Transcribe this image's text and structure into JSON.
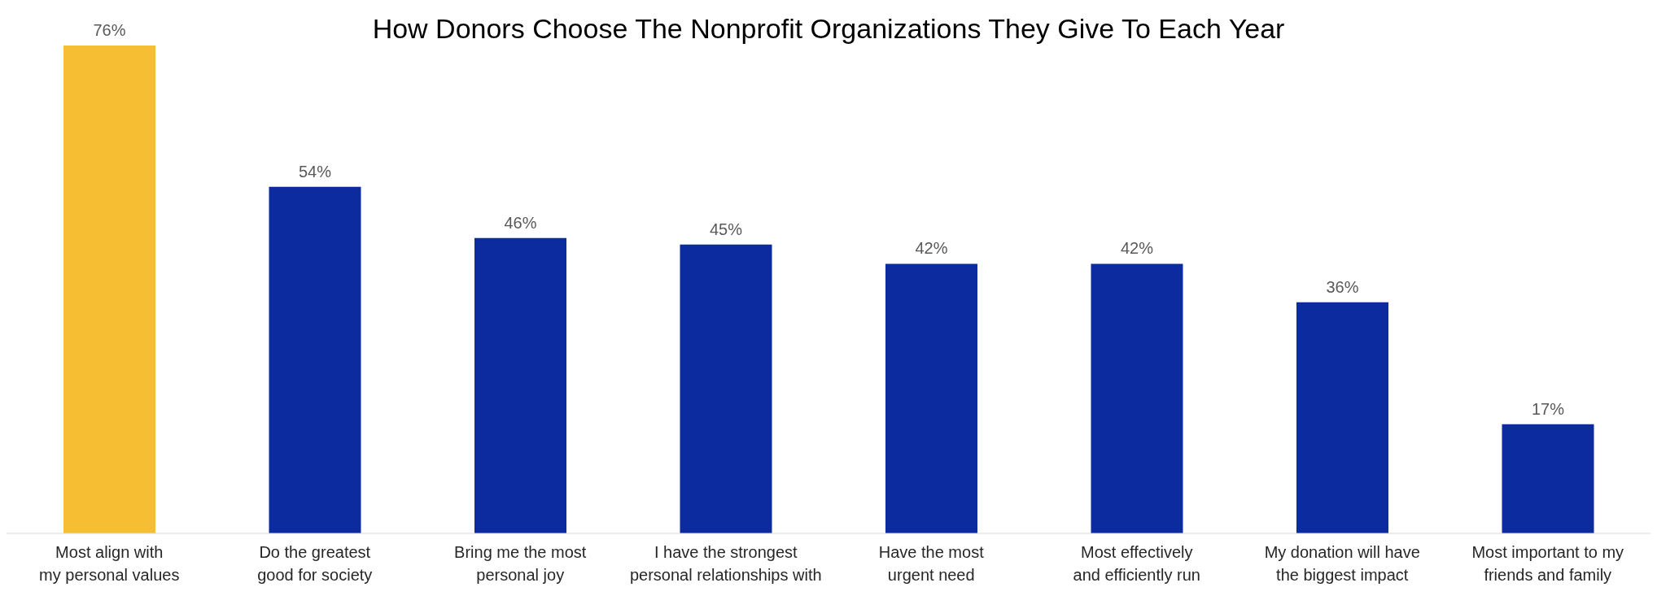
{
  "chart_data": {
    "type": "bar",
    "title": "How Donors Choose The Nonprofit Organizations They Give To Each Year",
    "categories": [
      "Most align with\nmy personal values",
      "Do the greatest\ngood for society",
      "Bring me the most\npersonal joy",
      "I have the strongest\npersonal relationships with",
      "Have the most\nurgent need",
      "Most effectively\nand efficiently run",
      "My donation will have\nthe biggest impact",
      "Most important to my\nfriends and family"
    ],
    "values": [
      76,
      54,
      46,
      45,
      42,
      42,
      36,
      17
    ],
    "colors": [
      "#f6bf33",
      "#0b2b9f",
      "#0b2b9f",
      "#0b2b9f",
      "#0b2b9f",
      "#0b2b9f",
      "#0b2b9f",
      "#0b2b9f"
    ],
    "value_labels": [
      "76%",
      "54%",
      "46%",
      "45%",
      "42%",
      "42%",
      "36%",
      "17%"
    ],
    "grid": false,
    "legend": false
  }
}
